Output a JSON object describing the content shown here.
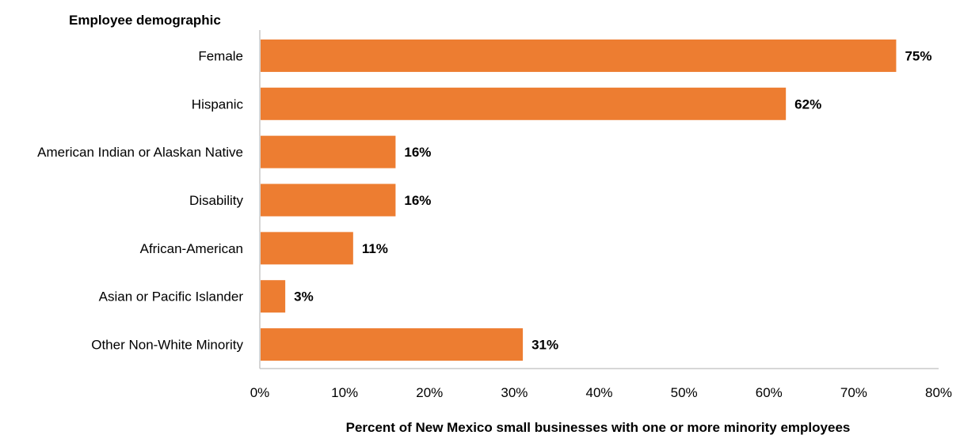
{
  "chart_data": {
    "type": "bar",
    "orientation": "horizontal",
    "ylabel": "Employee demographic",
    "xlabel": "Percent of New Mexico small businesses with one or more minority employees",
    "categories": [
      "Female",
      "Hispanic",
      "American Indian or Alaskan Native",
      "Disability",
      "African-American",
      "Asian or Pacific Islander",
      "Other Non-White Minority"
    ],
    "values": [
      75,
      62,
      16,
      16,
      11,
      3,
      31
    ],
    "value_labels": [
      "75%",
      "62%",
      "16%",
      "16%",
      "11%",
      "3%",
      "31%"
    ],
    "xlim": [
      0,
      80
    ],
    "xticks": [
      0,
      10,
      20,
      30,
      40,
      50,
      60,
      70,
      80
    ],
    "xtick_labels": [
      "0%",
      "10%",
      "20%",
      "30%",
      "40%",
      "50%",
      "60%",
      "70%",
      "80%"
    ],
    "grid": false,
    "legend": "none",
    "bar_color": "#ED7D31",
    "axis_color": "#BFBFBF"
  }
}
